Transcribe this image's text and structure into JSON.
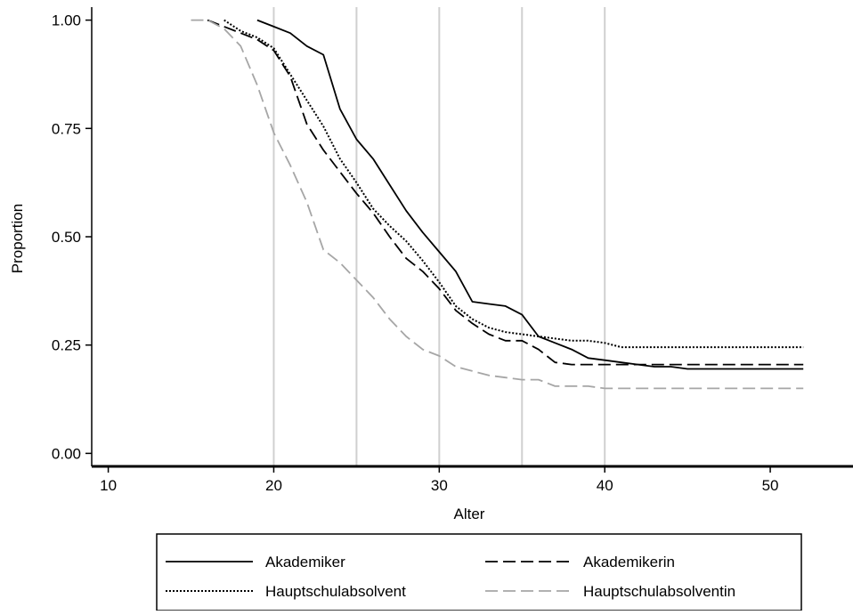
{
  "chart_data": {
    "type": "line",
    "title": "",
    "xlabel": "Alter",
    "ylabel": "Proportion",
    "xlim": [
      9,
      55
    ],
    "ylim": [
      -0.03,
      1.03
    ],
    "x_ticks": [
      10,
      20,
      30,
      40,
      50
    ],
    "x_tick_labels": [
      "10",
      "20",
      "30",
      "40",
      "50"
    ],
    "x_grid": [
      20,
      25,
      30,
      35,
      40
    ],
    "y_ticks": [
      0,
      0.25,
      0.5,
      0.75,
      1.0
    ],
    "y_tick_labels": [
      "0.00",
      "0.25",
      "0.50",
      "0.75",
      "1.00"
    ],
    "grid": "vertical",
    "legend_position": "bottom",
    "series": [
      {
        "name": "Akademiker",
        "color": "#000000",
        "dash": "solid",
        "x": [
          19,
          20,
          21,
          22,
          23,
          24,
          25,
          26,
          27,
          28,
          29,
          30,
          31,
          32,
          33,
          34,
          35,
          36,
          37,
          38,
          39,
          40,
          41,
          42,
          43,
          44,
          45,
          46,
          52
        ],
        "y": [
          1.0,
          0.985,
          0.97,
          0.94,
          0.92,
          0.795,
          0.725,
          0.68,
          0.62,
          0.56,
          0.51,
          0.465,
          0.42,
          0.35,
          0.345,
          0.34,
          0.32,
          0.27,
          0.255,
          0.24,
          0.22,
          0.215,
          0.21,
          0.205,
          0.2,
          0.2,
          0.195,
          0.195,
          0.195
        ]
      },
      {
        "name": "Akademikerin",
        "color": "#000000",
        "dash": "long",
        "x": [
          16,
          17,
          18,
          19,
          20,
          21,
          22,
          23,
          24,
          25,
          26,
          27,
          28,
          29,
          30,
          31,
          32,
          33,
          34,
          35,
          36,
          37,
          38,
          39,
          40,
          52
        ],
        "y": [
          1.0,
          0.985,
          0.97,
          0.955,
          0.93,
          0.87,
          0.76,
          0.7,
          0.65,
          0.6,
          0.555,
          0.5,
          0.45,
          0.42,
          0.38,
          0.33,
          0.3,
          0.275,
          0.26,
          0.26,
          0.24,
          0.21,
          0.205,
          0.205,
          0.205,
          0.205
        ]
      },
      {
        "name": "Hauptschulabsolvent",
        "color": "#000000",
        "dash": "dotted",
        "x": [
          17,
          18,
          19,
          20,
          21,
          22,
          23,
          24,
          25,
          26,
          27,
          28,
          29,
          30,
          31,
          32,
          33,
          34,
          35,
          36,
          37,
          38,
          39,
          40,
          41,
          52
        ],
        "y": [
          1.0,
          0.975,
          0.96,
          0.935,
          0.875,
          0.815,
          0.755,
          0.68,
          0.625,
          0.565,
          0.525,
          0.49,
          0.445,
          0.395,
          0.34,
          0.31,
          0.29,
          0.28,
          0.275,
          0.27,
          0.265,
          0.26,
          0.26,
          0.255,
          0.245,
          0.245
        ]
      },
      {
        "name": "Hauptschulabsolventin",
        "color": "#a6a6a6",
        "dash": "long",
        "x": [
          15,
          16,
          17,
          18,
          19,
          20,
          21,
          22,
          23,
          24,
          25,
          26,
          27,
          28,
          29,
          30,
          31,
          32,
          33,
          34,
          35,
          36,
          37,
          38,
          39,
          40,
          52
        ],
        "y": [
          1.0,
          1.0,
          0.98,
          0.94,
          0.85,
          0.74,
          0.665,
          0.58,
          0.47,
          0.44,
          0.4,
          0.36,
          0.31,
          0.27,
          0.24,
          0.225,
          0.2,
          0.19,
          0.18,
          0.175,
          0.17,
          0.17,
          0.155,
          0.155,
          0.155,
          0.15,
          0.15
        ]
      }
    ]
  }
}
